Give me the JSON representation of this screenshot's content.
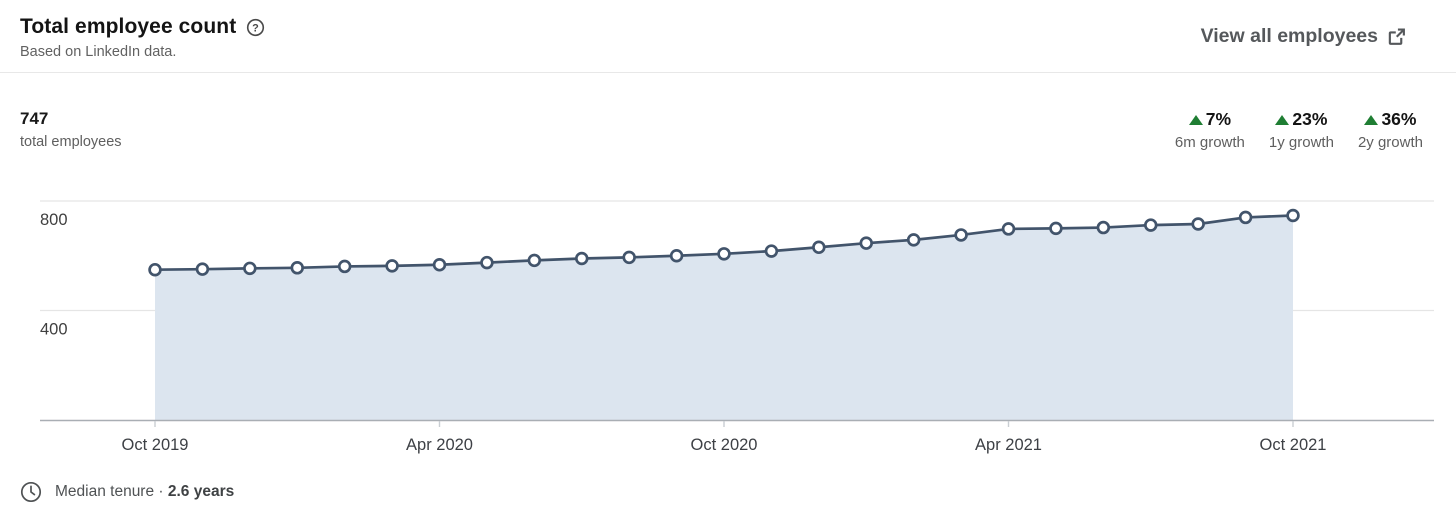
{
  "header": {
    "title": "Total employee count",
    "subtitle": "Based on LinkedIn data.",
    "view_all_label": "View all employees"
  },
  "summary": {
    "total_value": "747",
    "total_label": "total employees",
    "growth_stats": [
      {
        "value": "7%",
        "label": "6m growth",
        "direction": "up"
      },
      {
        "value": "23%",
        "label": "1y growth",
        "direction": "up"
      },
      {
        "value": "36%",
        "label": "2y growth",
        "direction": "up"
      }
    ]
  },
  "chart_data": {
    "type": "area",
    "title": "Total employee count",
    "x": [
      "Oct 2019",
      "Nov 2019",
      "Dec 2019",
      "Jan 2020",
      "Feb 2020",
      "Mar 2020",
      "Apr 2020",
      "May 2020",
      "Jun 2020",
      "Jul 2020",
      "Aug 2020",
      "Sep 2020",
      "Oct 2020",
      "Nov 2020",
      "Dec 2020",
      "Jan 2021",
      "Feb 2021",
      "Mar 2021",
      "Apr 2021",
      "May 2021",
      "Jun 2021",
      "Jul 2021",
      "Aug 2021",
      "Sep 2021",
      "Oct 2021"
    ],
    "values": [
      549,
      551,
      554,
      556,
      561,
      563,
      567,
      575,
      583,
      590,
      594,
      600,
      607,
      617,
      631,
      646,
      658,
      676,
      698,
      700,
      703,
      712,
      716,
      740,
      747
    ],
    "x_tick_labels": [
      "Oct 2019",
      "Apr 2020",
      "Oct 2020",
      "Apr 2021",
      "Oct 2021"
    ],
    "x_tick_every": 6,
    "y_ticks": [
      400,
      800
    ],
    "ylim": [
      0,
      847
    ],
    "grid": "horizontal",
    "legend": "none",
    "colors": {
      "line": "#42546b",
      "marker_fill": "#ffffff",
      "fill": "#dce5ef",
      "grid": "#e5e5e5",
      "axis": "#a9aeb4",
      "tick": "#c9ced3",
      "axis_text": "#3d4045",
      "positive": "#1f7e33"
    }
  },
  "footer": {
    "tenure_label": "Median tenure ·",
    "tenure_value": "2.6 years"
  }
}
